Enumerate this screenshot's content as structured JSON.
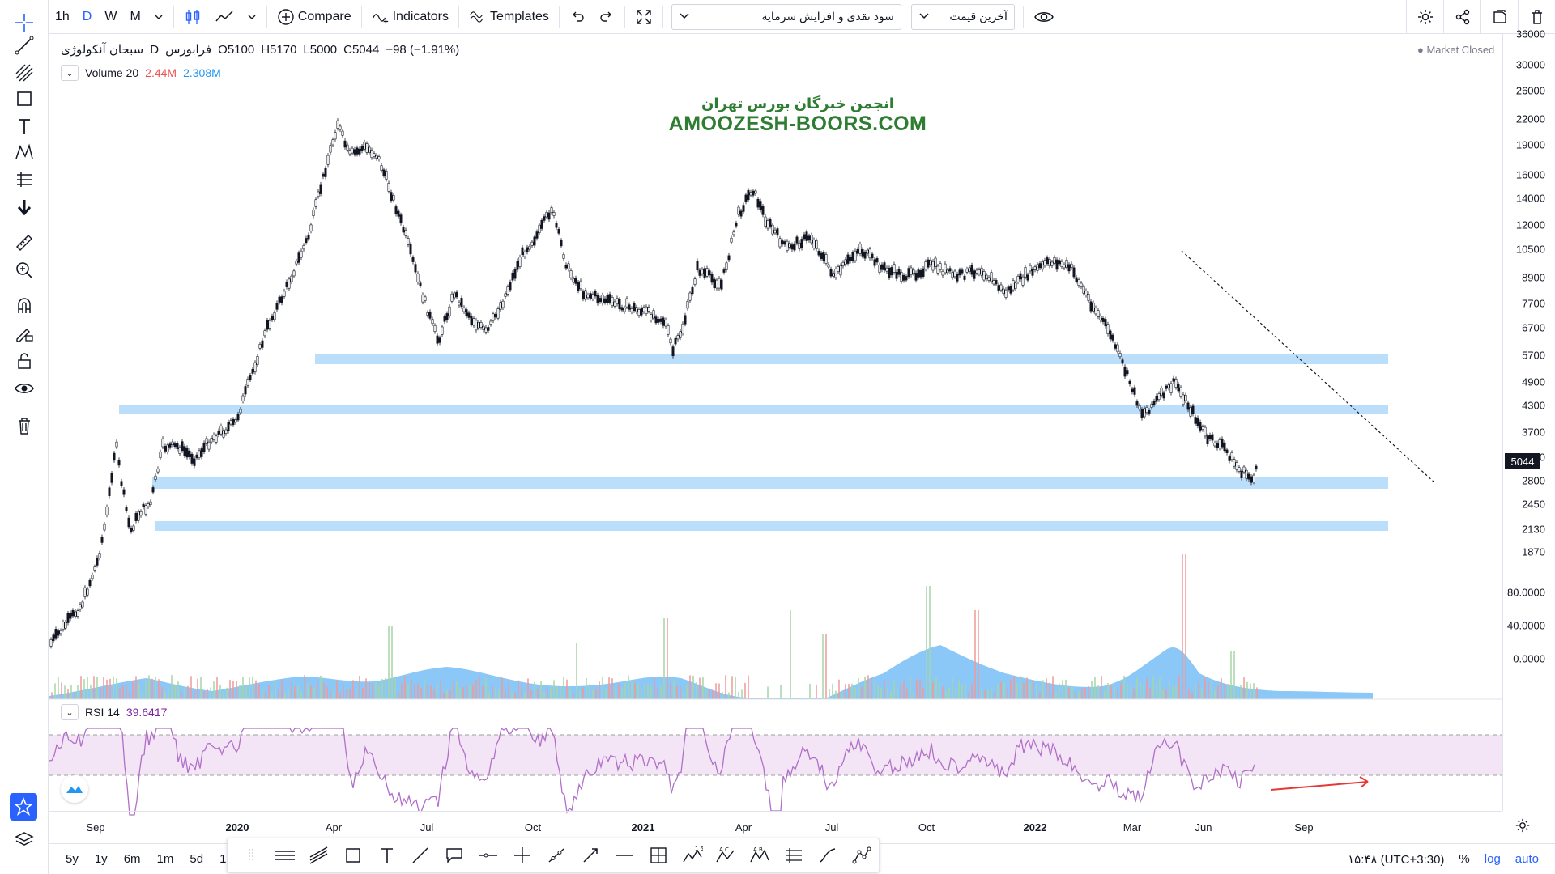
{
  "toolbar": {
    "intervals": [
      "1h",
      "D",
      "W",
      "M"
    ],
    "active_interval": "D",
    "compare_label": "Compare",
    "indicators_label": "Indicators",
    "templates_label": "Templates",
    "symbol_select": "سود نقدی و افزایش سرمایه",
    "price_type_select": "آخرین قیمت"
  },
  "legend": {
    "symbol_name": "سبحان آنکولوژی",
    "interval": "D",
    "exchange": "فرابورس",
    "open": "O5100",
    "high": "H5170",
    "low": "L5000",
    "close": "C5044",
    "change": "−98 (−1.91%)",
    "volume_label": "Volume 20",
    "volume_value": "2.44M",
    "volume_ma": "2.308M"
  },
  "status": {
    "market": "Market Closed"
  },
  "watermark": {
    "fa": "انجمن خبرگان بورس تهران",
    "en": "AMOOZESH-BOORS.COM"
  },
  "price_axis": [
    "36000",
    "30000",
    "26000",
    "22000",
    "19000",
    "16000",
    "14000",
    "12000",
    "10500",
    "8900",
    "7700",
    "6700",
    "5700",
    "4900",
    "4300",
    "3700",
    "3200",
    "2800",
    "2450",
    "2130",
    "1870"
  ],
  "last_price": "5044",
  "rsi": {
    "label": "RSI 14",
    "value": "39.6417",
    "axis": [
      "80.0000",
      "40.0000",
      "0.0000"
    ]
  },
  "time_axis": [
    {
      "label": "Sep",
      "bold": false
    },
    {
      "label": "2020",
      "bold": true
    },
    {
      "label": "Apr",
      "bold": false
    },
    {
      "label": "Jul",
      "bold": false
    },
    {
      "label": "Oct",
      "bold": false
    },
    {
      "label": "2021",
      "bold": true
    },
    {
      "label": "Apr",
      "bold": false
    },
    {
      "label": "Jul",
      "bold": false
    },
    {
      "label": "Oct",
      "bold": false
    },
    {
      "label": "2022",
      "bold": true
    },
    {
      "label": "Mar",
      "bold": false
    },
    {
      "label": "Jun",
      "bold": false
    },
    {
      "label": "Sep",
      "bold": false
    }
  ],
  "ranges": [
    "5y",
    "1y",
    "6m",
    "1m",
    "5d",
    "1d"
  ],
  "bottom_right": {
    "clock": "۱۵:۴۸ (UTC+3:30)",
    "percent": "%",
    "log": "log",
    "auto": "auto"
  },
  "colors": {
    "accent": "#2962ff",
    "support_zone": "#bbdefb",
    "rsi_line": "#b06fc8",
    "rsi_band": "#f3e5f5",
    "volume_ma": "#64b5f6",
    "trend_red": "#e53935"
  }
}
